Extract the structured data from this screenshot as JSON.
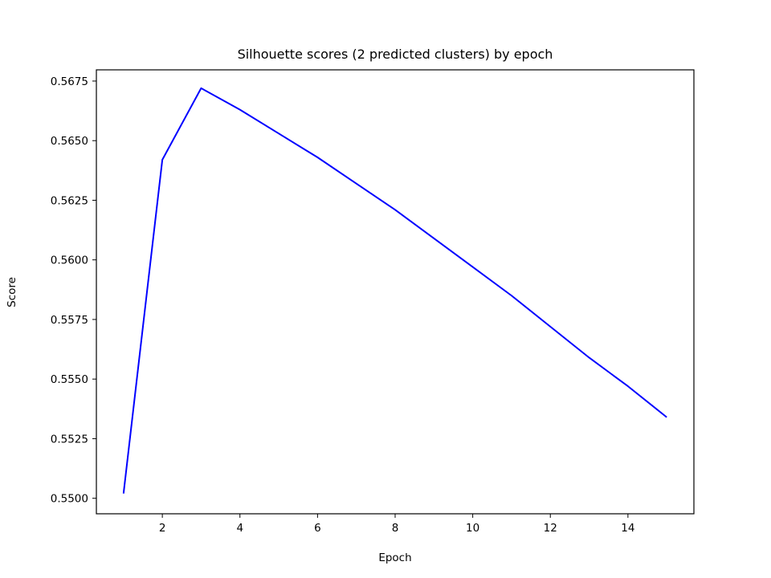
{
  "chart_data": {
    "type": "line",
    "title": "Silhouette scores (2 predicted clusters) by epoch",
    "xlabel": "Epoch",
    "ylabel": "Score",
    "xlim": [
      0.3,
      15.7
    ],
    "ylim": [
      0.54935,
      0.56797
    ],
    "xticks": [
      2,
      4,
      6,
      8,
      10,
      12,
      14
    ],
    "yticks": [
      0.55,
      0.5525,
      0.555,
      0.5575,
      0.56,
      0.5625,
      0.565,
      0.5675
    ],
    "ytick_labels": [
      "0.5500",
      "0.5525",
      "0.5550",
      "0.5575",
      "0.5600",
      "0.5625",
      "0.5650",
      "0.5675"
    ],
    "grid": false,
    "series": [
      {
        "color": "#0000ff",
        "x": [
          1,
          2,
          3,
          4,
          5,
          6,
          7,
          8,
          9,
          10,
          11,
          12,
          13,
          14,
          15
        ],
        "values": [
          0.5502,
          0.5642,
          0.5672,
          0.5663,
          0.5653,
          0.5643,
          0.5632,
          0.5621,
          0.5609,
          0.5597,
          0.5585,
          0.5572,
          0.5559,
          0.5547,
          0.5534
        ]
      }
    ]
  }
}
